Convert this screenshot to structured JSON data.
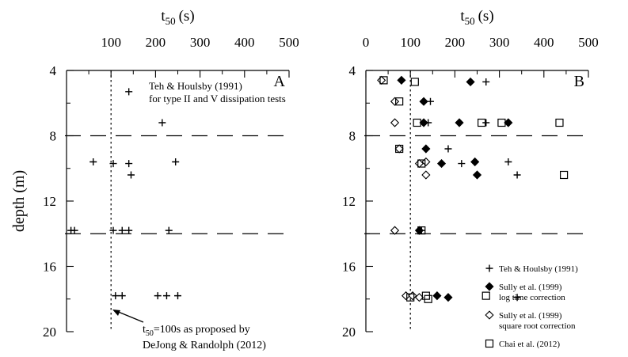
{
  "figure": {
    "ylabel": "depth (m)",
    "xlabel_base": "t",
    "xlabel_sub": "50",
    "xlabel_unit": "(s)",
    "dashed_line_depths": [
      8,
      14
    ],
    "reference_x": 100
  },
  "chart_data": [
    {
      "type": "scatter",
      "panel_label": "A",
      "xlim": [
        0,
        500
      ],
      "ylim": [
        4,
        20
      ],
      "y_reversed": true,
      "xticks": [
        100,
        200,
        300,
        400,
        500
      ],
      "yticks": [
        4,
        8,
        12,
        16,
        20
      ],
      "annotation": {
        "line1": "Teh & Houlsby (1991)",
        "line2": "for type II and V dissipation tests"
      },
      "reference_note": {
        "text_base": "t",
        "text_sub": "50",
        "text_rest": "=100s as proposed by",
        "line2": "DeJong & Randolph (2012)"
      },
      "series": [
        {
          "name": "Teh & Houlsby (1991)",
          "marker": "plus",
          "points": [
            {
              "x": 140,
              "y": 5.3
            },
            {
              "x": 215,
              "y": 7.2
            },
            {
              "x": 60,
              "y": 9.6
            },
            {
              "x": 105,
              "y": 9.7
            },
            {
              "x": 140,
              "y": 9.7
            },
            {
              "x": 245,
              "y": 9.6
            },
            {
              "x": 145,
              "y": 10.4
            },
            {
              "x": 10,
              "y": 13.8
            },
            {
              "x": 18,
              "y": 13.8
            },
            {
              "x": 105,
              "y": 13.8
            },
            {
              "x": 125,
              "y": 13.8
            },
            {
              "x": 140,
              "y": 13.8
            },
            {
              "x": 230,
              "y": 13.8
            },
            {
              "x": 110,
              "y": 17.8
            },
            {
              "x": 125,
              "y": 17.8
            },
            {
              "x": 205,
              "y": 17.8
            },
            {
              "x": 225,
              "y": 17.8
            },
            {
              "x": 250,
              "y": 17.8
            }
          ]
        }
      ]
    },
    {
      "type": "scatter",
      "panel_label": "B",
      "xlim": [
        0,
        500
      ],
      "ylim": [
        4,
        20
      ],
      "y_reversed": true,
      "xticks": [
        0,
        100,
        200,
        300,
        400,
        500
      ],
      "yticks": [
        4,
        8,
        12,
        16,
        20
      ],
      "legend_position": "bottom-right",
      "series": [
        {
          "name": "Teh & Houlsby (1991)",
          "legend_lines": [
            "Teh & Houlsby (1991)"
          ],
          "marker": "plus",
          "points": [
            {
              "x": 270,
              "y": 4.7
            },
            {
              "x": 145,
              "y": 5.9
            },
            {
              "x": 140,
              "y": 7.2
            },
            {
              "x": 270,
              "y": 7.2
            },
            {
              "x": 185,
              "y": 8.8
            },
            {
              "x": 215,
              "y": 9.7
            },
            {
              "x": 320,
              "y": 9.6
            },
            {
              "x": 340,
              "y": 10.4
            },
            {
              "x": 125,
              "y": 13.8
            },
            {
              "x": 340,
              "y": 17.9
            }
          ]
        },
        {
          "name": "Sully et al. (1999) log time correction",
          "legend_lines": [
            "Sully et al. (1999)",
            "log time correction"
          ],
          "marker": "diamond-filled",
          "points": [
            {
              "x": 80,
              "y": 4.6
            },
            {
              "x": 235,
              "y": 4.7
            },
            {
              "x": 130,
              "y": 5.9
            },
            {
              "x": 130,
              "y": 7.2
            },
            {
              "x": 210,
              "y": 7.2
            },
            {
              "x": 320,
              "y": 7.2
            },
            {
              "x": 135,
              "y": 8.8
            },
            {
              "x": 170,
              "y": 9.7
            },
            {
              "x": 245,
              "y": 9.6
            },
            {
              "x": 250,
              "y": 10.4
            },
            {
              "x": 120,
              "y": 13.8
            },
            {
              "x": 160,
              "y": 17.8
            },
            {
              "x": 185,
              "y": 17.9
            }
          ]
        },
        {
          "name": "Sully et al. (1999) square root correction",
          "legend_lines": [
            "Sully et al. (1999)",
            "square root correction"
          ],
          "marker": "diamond-open",
          "points": [
            {
              "x": 35,
              "y": 4.6
            },
            {
              "x": 65,
              "y": 5.9
            },
            {
              "x": 65,
              "y": 7.2
            },
            {
              "x": 75,
              "y": 8.8
            },
            {
              "x": 120,
              "y": 9.7
            },
            {
              "x": 135,
              "y": 9.6
            },
            {
              "x": 135,
              "y": 10.4
            },
            {
              "x": 65,
              "y": 13.8
            },
            {
              "x": 90,
              "y": 17.8
            },
            {
              "x": 105,
              "y": 17.8
            },
            {
              "x": 120,
              "y": 17.9
            }
          ]
        },
        {
          "name": "Chai et al. (2012)",
          "legend_lines": [
            "Chai et al. (2012)"
          ],
          "marker": "square-open",
          "points": [
            {
              "x": 40,
              "y": 4.6
            },
            {
              "x": 110,
              "y": 4.7
            },
            {
              "x": 75,
              "y": 5.9
            },
            {
              "x": 115,
              "y": 7.2
            },
            {
              "x": 260,
              "y": 7.2
            },
            {
              "x": 305,
              "y": 7.2
            },
            {
              "x": 435,
              "y": 7.2
            },
            {
              "x": 75,
              "y": 8.8
            },
            {
              "x": 125,
              "y": 9.7
            },
            {
              "x": 445,
              "y": 10.4
            },
            {
              "x": 125,
              "y": 13.8
            },
            {
              "x": 100,
              "y": 17.9
            },
            {
              "x": 135,
              "y": 17.8
            },
            {
              "x": 140,
              "y": 18.0
            },
            {
              "x": 270,
              "y": 17.8
            }
          ]
        }
      ]
    }
  ]
}
